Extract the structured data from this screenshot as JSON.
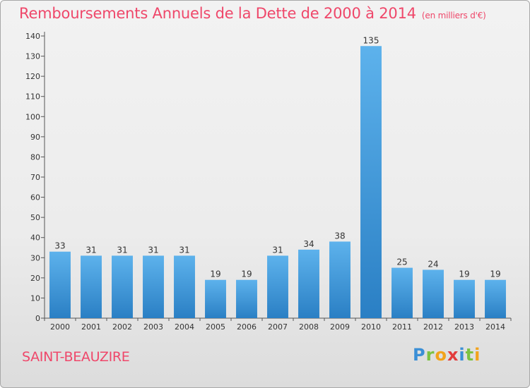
{
  "title": "Remboursements Annuels de la Dette de 2000 à 2014",
  "title_unit": "(en milliers d'€)",
  "commune": "SAINT-BEAUZIRE",
  "logo_text": "Proxiti",
  "colors": {
    "title": "#ef476a",
    "bar_light": "#5aaee8",
    "bar_dark": "#2a7fc4",
    "background": "#eeeeee"
  },
  "chart_data": {
    "type": "bar",
    "title": "Remboursements Annuels de la Dette de 2000 à 2014",
    "xlabel": "",
    "ylabel": "",
    "categories": [
      "2000",
      "2001",
      "2002",
      "2003",
      "2004",
      "2005",
      "2006",
      "2007",
      "2008",
      "2009",
      "2010",
      "2011",
      "2012",
      "2013",
      "2014"
    ],
    "values": [
      33,
      31,
      31,
      31,
      31,
      19,
      19,
      31,
      34,
      38,
      135,
      25,
      24,
      19,
      19
    ],
    "ylim": [
      0,
      140
    ],
    "yticks": [
      0,
      10,
      20,
      30,
      40,
      50,
      60,
      70,
      80,
      90,
      100,
      110,
      120,
      130,
      140
    ],
    "grid": false,
    "data_labels": true
  }
}
